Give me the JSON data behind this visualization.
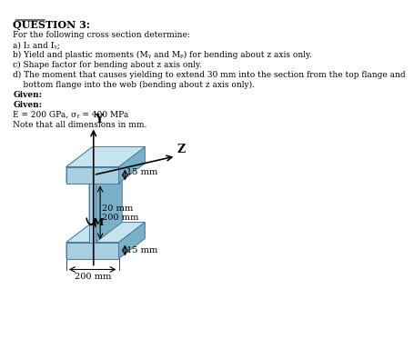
{
  "title": "QUESTION 3:",
  "text_lines": [
    "For the following cross section determine:",
    "a) I₂ and Iᵧ;",
    "b) Yield and plastic moments (Mᵧ and Mₚ) for bending about z axis only.",
    "c) Shape factor for bending about z axis only.",
    "d) The moment that causes yielding to extend 30 mm into the section from the top flange and",
    "    bottom flange into the web (bending about z axis only).",
    "Given:",
    "Given:",
    "E = 200 GPa, σᵧ = 400 MPa",
    "Note that all dimensions in mm."
  ],
  "flange_color_top": "#a8cfe0",
  "flange_color_side": "#7ab0c8",
  "flange_color_dark": "#5090b0",
  "web_color_top": "#b0d8ee",
  "web_color_side": "#85b8d0",
  "dim_15mm_top": "15 mm",
  "dim_15mm_bot": "15 mm",
  "dim_20mm": "20 mm",
  "dim_200mm_web": "200 mm",
  "dim_200mm_flange": "200 mm",
  "label_Y": "Y",
  "label_Z": "Z",
  "label_M": "M",
  "background_color": "#ffffff"
}
